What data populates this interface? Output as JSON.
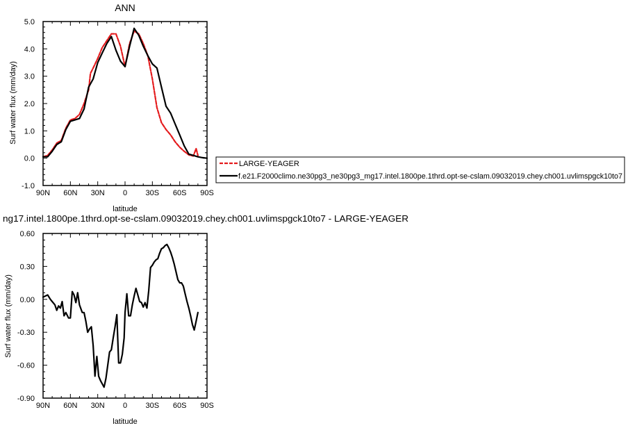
{
  "chart_data": [
    {
      "type": "line",
      "title": "ANN",
      "xlabel": "latitude",
      "ylabel": "Surf water flux (mm/day)",
      "xlim": [
        90,
        -90
      ],
      "ylim": [
        -1.0,
        5.0
      ],
      "x_ticks": [
        90,
        60,
        30,
        0,
        -30,
        -60,
        -90
      ],
      "x_tick_labels": [
        "90N",
        "60N",
        "30N",
        "0",
        "30S",
        "60S",
        "90S"
      ],
      "y_ticks": [
        -1,
        0,
        1,
        2,
        3,
        4,
        5
      ],
      "y_tick_labels": [
        "-1.0",
        "0.0",
        "1.0",
        "2.0",
        "3.0",
        "4.0",
        "5.0"
      ],
      "legend_placement": "outside-right",
      "series": [
        {
          "name": "LARGE-YEAGER",
          "color": "#e41a1c",
          "style": "dashed",
          "x": [
            90,
            85,
            80,
            75,
            70,
            65,
            60,
            55,
            50,
            45,
            40,
            38,
            35,
            30,
            25,
            20,
            15,
            10,
            5,
            0,
            -5,
            -10,
            -15,
            -20,
            -25,
            -30,
            -35,
            -40,
            -45,
            -50,
            -55,
            -60,
            -65,
            -70,
            -75,
            -78,
            -80
          ],
          "y": [
            0.05,
            0.1,
            0.3,
            0.55,
            0.65,
            1.1,
            1.4,
            1.45,
            1.6,
            2.0,
            2.5,
            3.1,
            3.3,
            3.65,
            4.05,
            4.3,
            4.55,
            4.55,
            4.1,
            3.35,
            4.2,
            4.65,
            4.55,
            4.2,
            3.75,
            2.9,
            1.85,
            1.3,
            1.05,
            0.85,
            0.6,
            0.4,
            0.25,
            0.12,
            0.08,
            0.35,
            0.1
          ]
        },
        {
          "name": "f.e21.F2000climo.ne30pg3_ne30pg3_mg17.intel.1800pe.1thrd.opt-se-cslam.09032019.chey.ch001.uvlimspgck10to7",
          "color": "#000000",
          "style": "solid",
          "x": [
            90,
            85,
            80,
            75,
            70,
            65,
            60,
            55,
            50,
            45,
            40,
            35,
            30,
            25,
            20,
            15,
            10,
            5,
            0,
            -5,
            -10,
            -15,
            -20,
            -25,
            -30,
            -35,
            -40,
            -45,
            -50,
            -55,
            -60,
            -65,
            -70,
            -75,
            -80,
            -85,
            -90
          ],
          "y": [
            0.05,
            0.05,
            0.25,
            0.5,
            0.6,
            1.05,
            1.35,
            1.4,
            1.45,
            1.8,
            2.6,
            2.9,
            3.5,
            3.85,
            4.2,
            4.45,
            3.95,
            3.55,
            3.35,
            4.1,
            4.75,
            4.5,
            4.1,
            3.75,
            3.45,
            3.3,
            2.6,
            1.9,
            1.65,
            1.25,
            0.85,
            0.45,
            0.15,
            0.1,
            0.05,
            0.02,
            0.0
          ]
        }
      ]
    },
    {
      "type": "line",
      "title": "ng17.intel.1800pe.1thrd.opt-se-cslam.09032019.chey.ch001.uvlimspgck10to7 - LARGE-YEAGER",
      "xlabel": "latitude",
      "ylabel": "Surf water flux (mm/day)",
      "xlim": [
        90,
        -90
      ],
      "ylim": [
        -0.9,
        0.6
      ],
      "x_ticks": [
        90,
        60,
        30,
        0,
        -30,
        -60,
        -90
      ],
      "x_tick_labels": [
        "90N",
        "60N",
        "30N",
        "0",
        "30S",
        "60S",
        "90S"
      ],
      "y_ticks": [
        -0.9,
        -0.6,
        -0.3,
        0.0,
        0.3,
        0.6
      ],
      "y_tick_labels": [
        "-0.90",
        "-0.60",
        "-0.30",
        "0.00",
        "0.30",
        "0.60"
      ],
      "series": [
        {
          "color": "#000000",
          "style": "solid",
          "x": [
            90,
            85,
            82,
            80,
            77,
            75,
            73,
            71,
            69,
            67,
            65,
            62,
            60,
            58,
            56,
            54,
            52,
            50,
            47,
            45,
            43,
            41,
            39,
            37,
            35,
            33,
            31,
            29,
            27,
            25,
            23,
            21,
            19,
            17,
            15,
            13,
            11,
            9,
            7,
            5,
            3,
            1,
            0,
            -2,
            -4,
            -6,
            -8,
            -10,
            -12,
            -14,
            -16,
            -18,
            -20,
            -22,
            -24,
            -26,
            -28,
            -30,
            -32,
            -34,
            -36,
            -38,
            -40,
            -42,
            -44,
            -46,
            -48,
            -50,
            -52,
            -54,
            -56,
            -58,
            -60,
            -62,
            -64,
            -66,
            -68,
            -70,
            -72,
            -74,
            -76,
            -78,
            -80
          ],
          "y": [
            0.02,
            0.04,
            0.0,
            -0.02,
            -0.05,
            -0.1,
            -0.06,
            -0.08,
            -0.02,
            -0.15,
            -0.12,
            -0.17,
            -0.17,
            0.07,
            0.04,
            -0.03,
            0.06,
            -0.05,
            -0.12,
            -0.12,
            -0.2,
            -0.3,
            -0.27,
            -0.25,
            -0.42,
            -0.7,
            -0.52,
            -0.7,
            -0.74,
            -0.77,
            -0.8,
            -0.72,
            -0.6,
            -0.48,
            -0.46,
            -0.35,
            -0.25,
            -0.14,
            -0.58,
            -0.58,
            -0.5,
            -0.35,
            -0.12,
            0.05,
            -0.15,
            -0.15,
            -0.05,
            0.03,
            0.1,
            0.04,
            -0.02,
            -0.03,
            -0.07,
            -0.03,
            -0.08,
            0.08,
            0.29,
            0.31,
            0.34,
            0.36,
            0.37,
            0.42,
            0.46,
            0.47,
            0.49,
            0.5,
            0.47,
            0.43,
            0.38,
            0.32,
            0.25,
            0.18,
            0.15,
            0.15,
            0.12,
            0.05,
            -0.02,
            -0.08,
            -0.15,
            -0.23,
            -0.28,
            -0.2,
            -0.12
          ]
        }
      ]
    }
  ]
}
